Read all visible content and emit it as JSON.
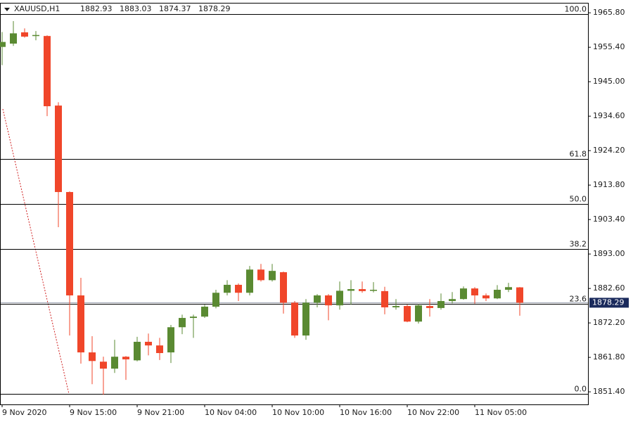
{
  "chart_data": {
    "type": "candlestick",
    "title": "XAUUSD,H1",
    "categories": [
      "9 Nov 2020",
      null,
      null,
      null,
      null,
      null,
      "9 Nov 15:00",
      null,
      null,
      null,
      null,
      null,
      "9 Nov 21:00",
      null,
      null,
      null,
      null,
      null,
      "10 Nov 04:00",
      null,
      null,
      null,
      null,
      null,
      "10 Nov 10:00",
      null,
      null,
      null,
      null,
      null,
      "10 Nov 16:00",
      null,
      null,
      null,
      null,
      null,
      "10 Nov 22:00",
      null,
      null,
      null,
      null,
      null,
      "11 Nov 05:00",
      null,
      null,
      null,
      null
    ],
    "open": [
      1955.5,
      1956.5,
      1959.9,
      1958.8,
      1958.8,
      1937.8,
      1911.7,
      1880.5,
      1863.3,
      1860.5,
      1858.4,
      1862.0,
      1860.9,
      1866.5,
      1865.4,
      1863.3,
      1870.9,
      1873.7,
      1874.1,
      1877.1,
      1881.3,
      1883.7,
      1881.3,
      1888.3,
      1885.1,
      1887.5,
      1878.3,
      1868.4,
      1878.3,
      1880.5,
      1877.5,
      1881.9,
      1882.4,
      1882.0,
      1881.8,
      1876.9,
      1877.3,
      1872.6,
      1877.3,
      1876.7,
      1878.8,
      1879.4,
      1882.6,
      1880.5,
      1879.6,
      1882.2,
      1882.93
    ],
    "high": [
      1960.0,
      1963.3,
      1961.1,
      1960.3,
      1959.0,
      1938.8,
      1911.9,
      1885.8,
      1868.2,
      1862.0,
      1867.1,
      1862.2,
      1868.0,
      1869.0,
      1867.7,
      1871.6,
      1874.7,
      1874.7,
      1877.7,
      1882.2,
      1885.1,
      1884.1,
      1889.4,
      1890.0,
      1890.0,
      1887.7,
      1878.8,
      1879.4,
      1880.9,
      1880.9,
      1884.7,
      1885.1,
      1884.7,
      1884.5,
      1883.1,
      1879.4,
      1877.7,
      1877.9,
      1879.4,
      1881.1,
      1881.5,
      1883.2,
      1883.0,
      1881.1,
      1883.6,
      1884.3,
      1883.03
    ],
    "low": [
      1950.0,
      1955.8,
      1958.3,
      1957.5,
      1934.6,
      1901.1,
      1868.4,
      1859.9,
      1853.7,
      1850.5,
      1857.1,
      1855.0,
      1860.6,
      1862.4,
      1861.0,
      1860.1,
      1868.8,
      1867.7,
      1873.7,
      1876.6,
      1880.5,
      1878.8,
      1880.5,
      1884.7,
      1884.7,
      1875.0,
      1867.7,
      1867.1,
      1876.9,
      1873.0,
      1876.2,
      1877.7,
      1881.3,
      1881.4,
      1874.8,
      1876.2,
      1872.4,
      1872.0,
      1874.1,
      1876.2,
      1878.1,
      1879.2,
      1878.0,
      1878.8,
      1879.4,
      1881.5,
      1874.37
    ],
    "close": [
      1957.0,
      1959.6,
      1958.6,
      1959.1,
      1937.6,
      1911.7,
      1880.5,
      1863.3,
      1860.7,
      1858.4,
      1862.0,
      1861.2,
      1866.5,
      1865.4,
      1863.1,
      1870.9,
      1873.7,
      1874.1,
      1877.1,
      1881.3,
      1883.7,
      1881.3,
      1888.3,
      1885.1,
      1887.9,
      1878.3,
      1868.4,
      1878.3,
      1880.5,
      1877.5,
      1881.9,
      1882.4,
      1881.8,
      1882.2,
      1876.9,
      1877.3,
      1872.6,
      1877.5,
      1876.7,
      1878.8,
      1879.4,
      1882.6,
      1880.5,
      1879.6,
      1882.2,
      1883.0,
      1878.29
    ],
    "up_color": "#5a8a32",
    "down_color": "#f0462a",
    "ylim": [
      1847.6,
      1968.6
    ],
    "yticks": [
      {
        "value": 1965.8,
        "label": "1965.80"
      },
      {
        "value": 1955.4,
        "label": "1955.40"
      },
      {
        "value": 1945.0,
        "label": "1945.00"
      },
      {
        "value": 1934.6,
        "label": "1934.60"
      },
      {
        "value": 1924.2,
        "label": "1924.20"
      },
      {
        "value": 1913.8,
        "label": "1913.80"
      },
      {
        "value": 1903.4,
        "label": "1903.40"
      },
      {
        "value": 1893.0,
        "label": "1893.00"
      },
      {
        "value": 1882.6,
        "label": "1882.60"
      },
      {
        "value": 1872.2,
        "label": "1872.20"
      },
      {
        "value": 1861.8,
        "label": "1861.80"
      },
      {
        "value": 1851.4,
        "label": "1851.40"
      }
    ],
    "fib_levels": [
      {
        "value": 1965.38,
        "label": "100.0"
      },
      {
        "value": 1921.65,
        "label": "61.8"
      },
      {
        "value": 1908.06,
        "label": "50.0"
      },
      {
        "value": 1894.5,
        "label": "38.2"
      },
      {
        "value": 1877.9,
        "label": "23.6"
      },
      {
        "value": 1850.8,
        "label": "0.0"
      }
    ],
    "grid": false
  }
}
